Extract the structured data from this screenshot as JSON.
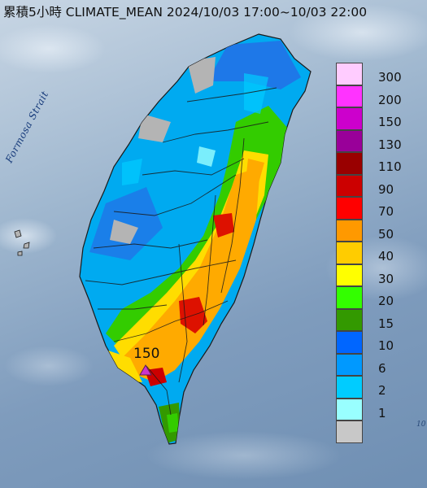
{
  "title": "累積5小時 CLIMATE_MEAN 2024/10/03 17:00~10/03 22:00",
  "strait_label": "Formosa Strait",
  "max_marker": {
    "label": "150",
    "icon": "triangle-marker-icon",
    "color": "#cc33cc"
  },
  "edge_note": "10",
  "legend": {
    "items": [
      {
        "label": "300",
        "color": "#ffccff"
      },
      {
        "label": "200",
        "color": "#ff33ff"
      },
      {
        "label": "150",
        "color": "#cc00cc"
      },
      {
        "label": "130",
        "color": "#990099"
      },
      {
        "label": "110",
        "color": "#990000"
      },
      {
        "label": "90",
        "color": "#cc0000"
      },
      {
        "label": "70",
        "color": "#ff0000"
      },
      {
        "label": "50",
        "color": "#ff9900"
      },
      {
        "label": "40",
        "color": "#ffcc00"
      },
      {
        "label": "30",
        "color": "#ffff00"
      },
      {
        "label": "20",
        "color": "#33ff00"
      },
      {
        "label": "15",
        "color": "#339900"
      },
      {
        "label": "10",
        "color": "#0066ff"
      },
      {
        "label": "6",
        "color": "#0099ff"
      },
      {
        "label": "2",
        "color": "#00ccff"
      },
      {
        "label": "1",
        "color": "#99ffff"
      },
      {
        "label": "",
        "color": "#c8c8c8"
      }
    ]
  },
  "colors": {
    "sea_light": "#c8d6e4",
    "sea_dark": "#6f8fb3",
    "no_rain": "#b4b4b4",
    "county_border": "#1a1a1a"
  }
}
